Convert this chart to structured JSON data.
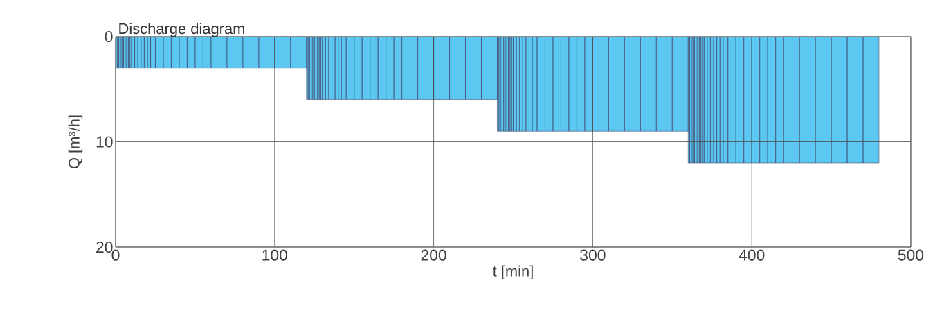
{
  "chart_data": {
    "type": "histogram",
    "title": "Discharge diagram",
    "xlabel": "t [min]",
    "ylabel": "Q [m³/h]",
    "bins": [
      0,
      1,
      2,
      3,
      4,
      5,
      6,
      7,
      8,
      9,
      10,
      12,
      14,
      16,
      18,
      20,
      22,
      25,
      30,
      35,
      40,
      45,
      50,
      55,
      60,
      70,
      80,
      90,
      100,
      110,
      120,
      121,
      122,
      123,
      124,
      125,
      126,
      127,
      128,
      129,
      130,
      132,
      134,
      136,
      138,
      140,
      142,
      145,
      150,
      155,
      160,
      165,
      170,
      175,
      180,
      190,
      200,
      210,
      220,
      230,
      240,
      241,
      242,
      243,
      244,
      245,
      246,
      247,
      248,
      249,
      250,
      252,
      254,
      256,
      258,
      260,
      262,
      265,
      270,
      275,
      280,
      285,
      290,
      295,
      300,
      310,
      320,
      330,
      340,
      350,
      360,
      361,
      362,
      363,
      364,
      365,
      366,
      367,
      368,
      369,
      370,
      372,
      374,
      376,
      378,
      380,
      382,
      385,
      390,
      395,
      400,
      405,
      410,
      415,
      420,
      430,
      440,
      450,
      460,
      470,
      480
    ],
    "values": [
      3,
      3,
      3,
      3,
      3,
      3,
      3,
      3,
      3,
      3,
      3,
      3,
      3,
      3,
      3,
      3,
      3,
      3,
      3,
      3,
      3,
      3,
      3,
      3,
      3,
      3,
      3,
      3,
      3,
      3,
      6,
      6,
      6,
      6,
      6,
      6,
      6,
      6,
      6,
      6,
      6,
      6,
      6,
      6,
      6,
      6,
      6,
      6,
      6,
      6,
      6,
      6,
      6,
      6,
      6,
      6,
      6,
      6,
      6,
      6,
      9,
      9,
      9,
      9,
      9,
      9,
      9,
      9,
      9,
      9,
      9,
      9,
      9,
      9,
      9,
      9,
      9,
      9,
      9,
      9,
      9,
      9,
      9,
      9,
      9,
      9,
      9,
      9,
      9,
      9,
      12,
      12,
      12,
      12,
      12,
      12,
      12,
      12,
      12,
      12,
      12,
      12,
      12,
      12,
      12,
      12,
      12,
      12,
      12,
      12,
      12,
      12,
      12,
      12,
      12,
      12,
      12,
      12,
      12,
      12
    ],
    "color": "#5cc8f2",
    "xlim": [
      0,
      500
    ],
    "ylim": [
      20,
      0
    ],
    "xticks": [
      0,
      100,
      200,
      300,
      400,
      500
    ],
    "yticks": [
      0,
      10,
      20
    ],
    "grid": true
  }
}
